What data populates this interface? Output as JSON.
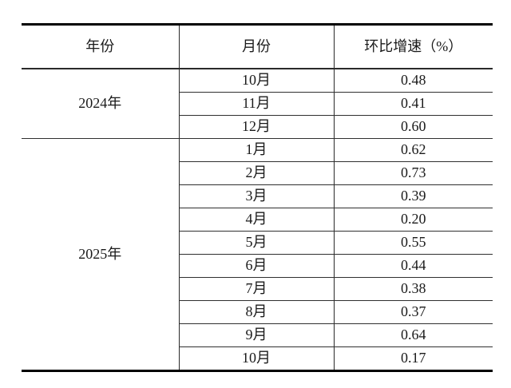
{
  "page": {
    "background": "#ffffff",
    "thick_rule_color": "#000000",
    "thin_rule_color": "#2f2f2f",
    "text_color": "#1a1a1a"
  },
  "table": {
    "headers": {
      "year": "年份",
      "month": "月份",
      "growth": "环比增速（%）"
    },
    "sections": [
      {
        "year": "2024年",
        "rows": [
          {
            "month": "10月",
            "value": "0.48"
          },
          {
            "month": "11月",
            "value": "0.41"
          },
          {
            "month": "12月",
            "value": "0.60"
          }
        ]
      },
      {
        "year": "2025年",
        "rows": [
          {
            "month": "1月",
            "value": "0.62"
          },
          {
            "month": "2月",
            "value": "0.73"
          },
          {
            "month": "3月",
            "value": "0.39"
          },
          {
            "month": "4月",
            "value": "0.20"
          },
          {
            "month": "5月",
            "value": "0.55"
          },
          {
            "month": "6月",
            "value": "0.44"
          },
          {
            "month": "7月",
            "value": "0.38"
          },
          {
            "month": "8月",
            "value": "0.37"
          },
          {
            "month": "9月",
            "value": "0.64"
          },
          {
            "month": "10月",
            "value": "0.17"
          }
        ]
      }
    ]
  },
  "chart_data": {
    "type": "table",
    "title": "",
    "columns": [
      "年份",
      "月份",
      "环比增速（%）"
    ],
    "rows": [
      [
        "2024年",
        "10月",
        0.48
      ],
      [
        "2024年",
        "11月",
        0.41
      ],
      [
        "2024年",
        "12月",
        0.6
      ],
      [
        "2025年",
        "1月",
        0.62
      ],
      [
        "2025年",
        "2月",
        0.73
      ],
      [
        "2025年",
        "3月",
        0.39
      ],
      [
        "2025年",
        "4月",
        0.2
      ],
      [
        "2025年",
        "5月",
        0.55
      ],
      [
        "2025年",
        "6月",
        0.44
      ],
      [
        "2025年",
        "7月",
        0.38
      ],
      [
        "2025年",
        "8月",
        0.37
      ],
      [
        "2025年",
        "9月",
        0.64
      ],
      [
        "2025年",
        "10月",
        0.17
      ]
    ]
  }
}
